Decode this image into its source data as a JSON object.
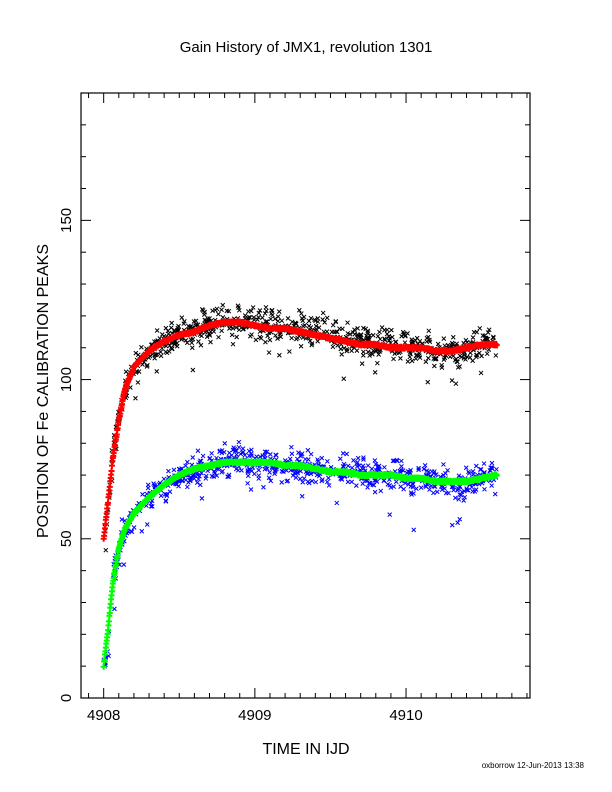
{
  "chart_data": {
    "type": "scatter",
    "title": "Gain History of JMX1, revolution 1301",
    "xlabel": "TIME IN IJD",
    "ylabel": "POSITION OF Fe CALIBRATION PEAKS",
    "xlim": [
      4907.85,
      4910.82
    ],
    "ylim": [
      0,
      190
    ],
    "x_ticks": [
      4908,
      4909,
      4910
    ],
    "x_tick_labels": [
      "4908",
      "4909",
      "4910"
    ],
    "y_ticks": [
      0,
      50,
      100,
      150
    ],
    "y_tick_labels": [
      "0",
      "50",
      "100",
      "150"
    ],
    "grid": false,
    "legend": "none",
    "footer": "oxborrow 12-Jun-2013 13:38",
    "series": [
      {
        "kind": "points",
        "marker": "x",
        "color": "#000000",
        "spread": 3.0,
        "x": [
          4908.0,
          4908.03,
          4908.06,
          4908.1,
          4908.14,
          4908.2,
          4908.3,
          4908.4,
          4908.5,
          4908.6,
          4908.7,
          4908.8,
          4908.9,
          4909.0,
          4909.1,
          4909.2,
          4909.3,
          4909.4,
          4909.5,
          4909.6,
          4909.7,
          4909.8,
          4909.9,
          4910.0,
          4910.1,
          4910.2,
          4910.3,
          4910.4,
          4910.5,
          4910.6
        ],
        "y": [
          46,
          62,
          75,
          87,
          97,
          104,
          109,
          112,
          114,
          115,
          117,
          118,
          118,
          118,
          117,
          116,
          116,
          115,
          114,
          113,
          112,
          111,
          111,
          110,
          110,
          109,
          109,
          109,
          111,
          112
        ]
      },
      {
        "kind": "points",
        "marker": "x",
        "color": "#0000ff",
        "spread": 3.0,
        "x": [
          4908.0,
          4908.03,
          4908.06,
          4908.1,
          4908.14,
          4908.2,
          4908.3,
          4908.4,
          4908.5,
          4908.6,
          4908.7,
          4908.8,
          4908.9,
          4909.0,
          4909.1,
          4909.2,
          4909.3,
          4909.4,
          4909.5,
          4909.6,
          4909.7,
          4909.8,
          4909.9,
          4910.0,
          4910.1,
          4910.2,
          4910.3,
          4910.4,
          4910.5,
          4910.6
        ],
        "y": [
          8,
          22,
          36,
          46,
          53,
          58,
          63,
          67,
          70,
          72,
          73,
          74,
          75,
          74,
          74,
          73,
          73,
          72,
          71,
          71,
          70,
          70,
          70,
          69,
          69,
          68,
          67,
          67,
          69,
          70
        ]
      },
      {
        "kind": "fit",
        "marker": "+",
        "color": "#ff0000",
        "x": [
          4908.0,
          4908.03,
          4908.06,
          4908.1,
          4908.14,
          4908.2,
          4908.3,
          4908.4,
          4908.5,
          4908.6,
          4908.7,
          4908.8,
          4908.9,
          4909.0,
          4909.1,
          4909.2,
          4909.3,
          4909.4,
          4909.5,
          4909.6,
          4909.7,
          4909.8,
          4909.9,
          4910.0,
          4910.1,
          4910.2,
          4910.3,
          4910.4,
          4910.5,
          4910.6
        ],
        "y": [
          50,
          62,
          75,
          87,
          97,
          104,
          109,
          112,
          114,
          115,
          117,
          118,
          118,
          117,
          116,
          116,
          115,
          114,
          113,
          112,
          111,
          111,
          110,
          110,
          110,
          109,
          109,
          110,
          111,
          111
        ]
      },
      {
        "kind": "fit",
        "marker": "+",
        "color": "#00ff00",
        "x": [
          4908.0,
          4908.03,
          4908.06,
          4908.1,
          4908.14,
          4908.2,
          4908.3,
          4908.4,
          4908.5,
          4908.6,
          4908.7,
          4908.8,
          4908.9,
          4909.0,
          4909.1,
          4909.2,
          4909.3,
          4909.4,
          4909.5,
          4909.6,
          4909.7,
          4909.8,
          4909.9,
          4910.0,
          4910.1,
          4910.2,
          4910.3,
          4910.4,
          4910.5,
          4910.6
        ],
        "y": [
          10,
          22,
          36,
          47,
          53,
          58,
          63,
          67,
          70,
          72,
          73,
          74,
          74,
          74,
          74,
          73,
          73,
          72,
          71,
          71,
          70,
          70,
          70,
          69,
          69,
          68,
          68,
          68,
          69,
          70
        ]
      }
    ]
  }
}
